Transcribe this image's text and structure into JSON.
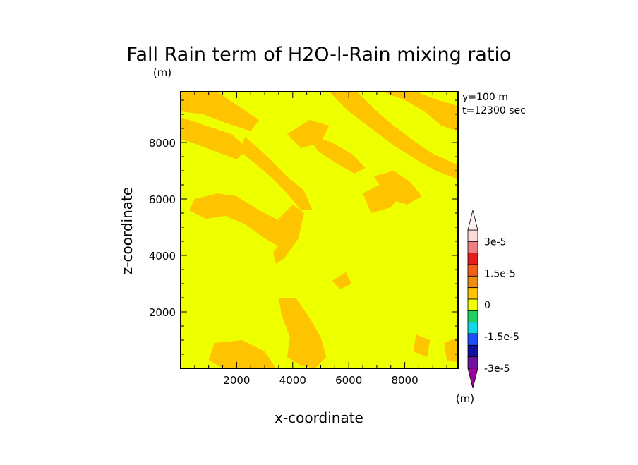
{
  "chart_data": {
    "type": "heatmap",
    "title": "Fall Rain term of H2O-l-Rain mixing ratio",
    "units_label": "(m)",
    "xlabel": "x-coordinate",
    "ylabel": "z-coordinate",
    "annotations": [
      "y=100 m",
      "t=12300 sec"
    ],
    "xlim": [
      0,
      9900
    ],
    "ylim": [
      0,
      9800
    ],
    "x_ticks": [
      2000,
      4000,
      6000,
      8000
    ],
    "y_ticks": [
      2000,
      4000,
      6000,
      8000
    ],
    "grid": false,
    "colorbar": {
      "placement": "right",
      "units_label": "(m)",
      "tick_labels": [
        "3e-5",
        "1.5e-5",
        "0",
        "-1.5e-5",
        "-3e-5"
      ],
      "tick_values": [
        3e-05,
        1.5e-05,
        0,
        -1.5e-05,
        -3e-05
      ],
      "levels_top_to_bottom": [
        {
          "color": "#ffd9d9"
        },
        {
          "color": "#f08080"
        },
        {
          "color": "#e81c1c"
        },
        {
          "color": "#f06018"
        },
        {
          "color": "#f08c10"
        },
        {
          "color": "#ffc400"
        },
        {
          "color": "#eeff00"
        },
        {
          "color": "#20d060"
        },
        {
          "color": "#10d8e8"
        },
        {
          "color": "#1e50ff"
        },
        {
          "color": "#1010a0"
        },
        {
          "color": "#7010a0"
        }
      ]
    },
    "field": {
      "background_level_color": "#eeff00",
      "positive_level_color": "#ffc400",
      "regions": [
        {
          "points": [
            [
              0,
              9800
            ],
            [
              1300,
              9800
            ],
            [
              2200,
              9200
            ],
            [
              2800,
              8800
            ],
            [
              2500,
              8400
            ],
            [
              1600,
              8700
            ],
            [
              800,
              9000
            ],
            [
              0,
              9100
            ]
          ]
        },
        {
          "points": [
            [
              0,
              8900
            ],
            [
              900,
              8600
            ],
            [
              1800,
              8300
            ],
            [
              2400,
              7800
            ],
            [
              2000,
              7400
            ],
            [
              1200,
              7700
            ],
            [
              400,
              8000
            ],
            [
              0,
              8100
            ]
          ]
        },
        {
          "points": [
            [
              2300,
              8200
            ],
            [
              3100,
              7500
            ],
            [
              3800,
              6800
            ],
            [
              4400,
              6300
            ],
            [
              4700,
              5600
            ],
            [
              4300,
              5600
            ],
            [
              3800,
              6200
            ],
            [
              3200,
              6800
            ],
            [
              2600,
              7300
            ],
            [
              2100,
              7700
            ]
          ]
        },
        {
          "points": [
            [
              500,
              6000
            ],
            [
              1300,
              6200
            ],
            [
              2000,
              6100
            ],
            [
              2800,
              5600
            ],
            [
              3600,
              5200
            ],
            [
              4000,
              4500
            ],
            [
              3700,
              4200
            ],
            [
              3000,
              4600
            ],
            [
              2300,
              5100
            ],
            [
              1600,
              5400
            ],
            [
              900,
              5300
            ],
            [
              300,
              5600
            ]
          ]
        },
        {
          "points": [
            [
              3500,
              5300
            ],
            [
              4000,
              5800
            ],
            [
              4400,
              5500
            ],
            [
              4200,
              4600
            ],
            [
              3700,
              3900
            ],
            [
              3400,
              3700
            ],
            [
              3300,
              4100
            ],
            [
              3700,
              4600
            ]
          ]
        },
        {
          "points": [
            [
              3800,
              8300
            ],
            [
              4600,
              8800
            ],
            [
              5300,
              8600
            ],
            [
              5000,
              8000
            ],
            [
              4300,
              7800
            ]
          ]
        },
        {
          "points": [
            [
              4500,
              8300
            ],
            [
              5400,
              8000
            ],
            [
              6100,
              7600
            ],
            [
              6600,
              7100
            ],
            [
              6200,
              6900
            ],
            [
              5500,
              7300
            ],
            [
              4900,
              7700
            ]
          ]
        },
        {
          "points": [
            [
              5300,
              9800
            ],
            [
              6300,
              9800
            ],
            [
              7000,
              9100
            ],
            [
              7600,
              8600
            ],
            [
              8400,
              8000
            ],
            [
              9000,
              7600
            ],
            [
              9900,
              7200
            ],
            [
              9900,
              6700
            ],
            [
              9100,
              7000
            ],
            [
              8400,
              7400
            ],
            [
              7600,
              7900
            ],
            [
              6800,
              8500
            ],
            [
              6000,
              9100
            ]
          ]
        },
        {
          "points": [
            [
              7200,
              9800
            ],
            [
              8000,
              9500
            ],
            [
              8700,
              9100
            ],
            [
              9300,
              8600
            ],
            [
              9900,
              8400
            ],
            [
              9900,
              9300
            ],
            [
              9200,
              9500
            ],
            [
              8400,
              9800
            ]
          ]
        },
        {
          "points": [
            [
              6900,
              6800
            ],
            [
              7600,
              7000
            ],
            [
              8200,
              6600
            ],
            [
              8600,
              6100
            ],
            [
              8100,
              5800
            ],
            [
              7400,
              6000
            ]
          ]
        },
        {
          "points": [
            [
              6500,
              6200
            ],
            [
              7300,
              6600
            ],
            [
              8000,
              6300
            ],
            [
              7500,
              5700
            ],
            [
              6800,
              5500
            ]
          ]
        },
        {
          "points": [
            [
              3500,
              2500
            ],
            [
              4100,
              2500
            ],
            [
              4600,
              1800
            ],
            [
              5000,
              1100
            ],
            [
              5200,
              400
            ],
            [
              4800,
              0
            ],
            [
              4300,
              100
            ],
            [
              3800,
              400
            ],
            [
              3900,
              1100
            ],
            [
              3600,
              1900
            ]
          ]
        },
        {
          "points": [
            [
              1200,
              900
            ],
            [
              2200,
              1000
            ],
            [
              3000,
              600
            ],
            [
              3400,
              0
            ],
            [
              1500,
              0
            ],
            [
              1000,
              300
            ]
          ]
        },
        {
          "points": [
            [
              5400,
              3100
            ],
            [
              5900,
              3400
            ],
            [
              6100,
              3000
            ],
            [
              5700,
              2800
            ]
          ]
        },
        {
          "points": [
            [
              8400,
              1200
            ],
            [
              8900,
              1000
            ],
            [
              8800,
              400
            ],
            [
              8300,
              600
            ]
          ]
        },
        {
          "points": [
            [
              9400,
              900
            ],
            [
              9900,
              1100
            ],
            [
              9900,
              200
            ],
            [
              9500,
              300
            ]
          ]
        }
      ]
    }
  }
}
